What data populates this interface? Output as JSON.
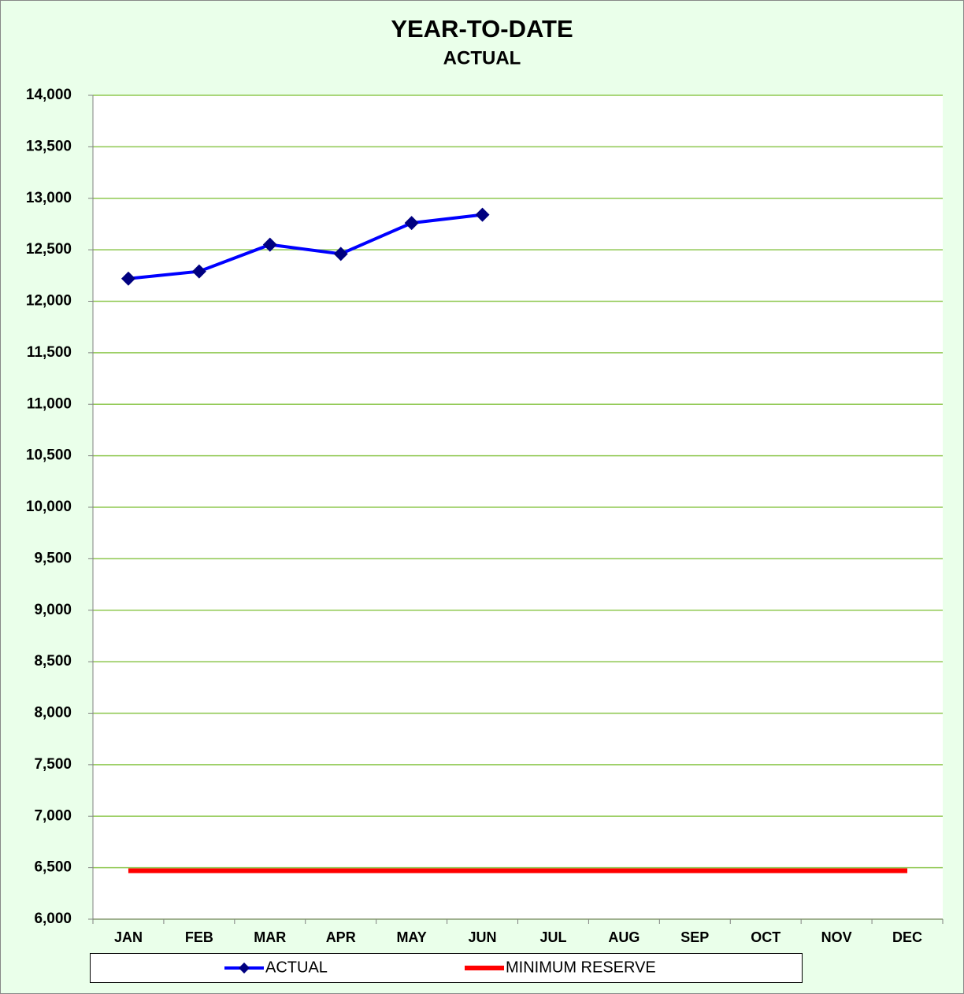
{
  "chart_data": {
    "type": "line",
    "title": "YEAR-TO-DATE",
    "subtitle": "ACTUAL",
    "categories": [
      "JAN",
      "FEB",
      "MAR",
      "APR",
      "MAY",
      "JUN",
      "JUL",
      "AUG",
      "SEP",
      "OCT",
      "NOV",
      "DEC"
    ],
    "series": [
      {
        "name": "ACTUAL",
        "color": "#0000ff",
        "marker_color": "#000080",
        "marker": "diamond",
        "values": [
          12220,
          12290,
          12550,
          12460,
          12760,
          12840,
          null,
          null,
          null,
          null,
          null,
          null
        ]
      },
      {
        "name": "MINIMUM RESERVE",
        "color": "#ff0000",
        "values": [
          6470,
          6470,
          6470,
          6470,
          6470,
          6470,
          6470,
          6470,
          6470,
          6470,
          6470,
          6470
        ]
      }
    ],
    "ylim": [
      6000,
      14000
    ],
    "yticks": [
      {
        "value": 6000,
        "label": "6,000"
      },
      {
        "value": 6500,
        "label": "6,500"
      },
      {
        "value": 7000,
        "label": "7,000"
      },
      {
        "value": 7500,
        "label": "7,500"
      },
      {
        "value": 8000,
        "label": "8,000"
      },
      {
        "value": 8500,
        "label": "8,500"
      },
      {
        "value": 9000,
        "label": "9,000"
      },
      {
        "value": 9500,
        "label": "9,500"
      },
      {
        "value": 10000,
        "label": "10,000"
      },
      {
        "value": 10500,
        "label": "10,500"
      },
      {
        "value": 11000,
        "label": "11,000"
      },
      {
        "value": 11500,
        "label": "11,500"
      },
      {
        "value": 12000,
        "label": "12,000"
      },
      {
        "value": 12500,
        "label": "12,500"
      },
      {
        "value": 13000,
        "label": "13,000"
      },
      {
        "value": 13500,
        "label": "13,500"
      },
      {
        "value": 14000,
        "label": "14,000"
      }
    ],
    "grid": true,
    "grid_color": "#8fc850",
    "legend": "bottom"
  }
}
